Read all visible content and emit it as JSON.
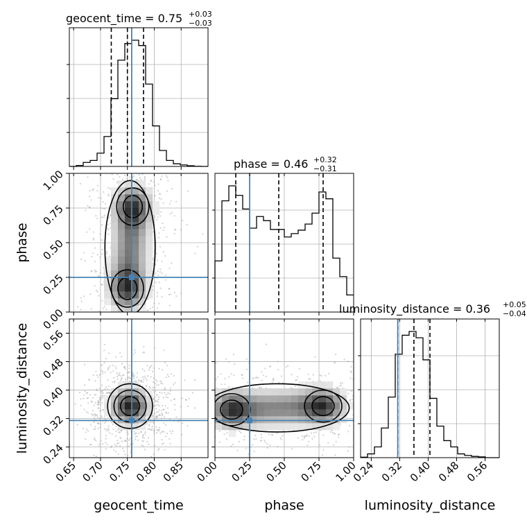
{
  "chart_data": {
    "type": "corner",
    "parameters": [
      "geocent_time",
      "phase",
      "luminosity_distance"
    ],
    "axis_labels": [
      "geocent_time",
      "phase",
      "luminosity_distance"
    ],
    "ranges": {
      "geocent_time": [
        0.642,
        0.9
      ],
      "phase": [
        0.0,
        1.0
      ],
      "luminosity_distance": [
        0.21,
        0.6
      ]
    },
    "ticks": {
      "geocent_time": [
        "0.65",
        "0.70",
        "0.75",
        "0.80",
        "0.85"
      ],
      "phase": [
        "0.00",
        "0.25",
        "0.50",
        "0.75",
        "1.00"
      ],
      "luminosity_distance": [
        "0.24",
        "0.32",
        "0.40",
        "0.48",
        "0.56"
      ]
    },
    "tick_values": {
      "geocent_time": [
        0.65,
        0.7,
        0.75,
        0.8,
        0.85
      ],
      "phase": [
        0.0,
        0.25,
        0.5,
        0.75,
        1.0
      ],
      "luminosity_distance": [
        0.24,
        0.32,
        0.4,
        0.48,
        0.56
      ]
    },
    "truths": {
      "geocent_time": 0.758,
      "phase": 0.25,
      "luminosity_distance": 0.3145
    },
    "titles": {
      "geocent_time": {
        "name": "geocent_time",
        "median": "0.75",
        "plus": "+0.03",
        "minus": "−0.03"
      },
      "phase": {
        "name": "phase",
        "median": "0.46",
        "plus": "+0.32",
        "minus": "−0.31"
      },
      "luminosity_distance": {
        "name": "luminosity_distance",
        "median": "0.36",
        "plus": "+0.05",
        "minus": "−0.04"
      }
    },
    "quantiles": {
      "geocent_time": [
        0.72,
        0.75,
        0.78
      ],
      "phase": [
        0.15,
        0.46,
        0.78
      ],
      "luminosity_distance": [
        0.315,
        0.36,
        0.405
      ]
    },
    "histograms": {
      "geocent_time": {
        "edges": [
          0.642,
          0.6549,
          0.6678,
          0.6807,
          0.6936,
          0.7065,
          0.7194,
          0.7323,
          0.7452,
          0.7581,
          0.771,
          0.7839,
          0.7968,
          0.8097,
          0.8226,
          0.8355,
          0.8484,
          0.8613,
          0.8742,
          0.8871,
          0.9
        ],
        "counts": [
          0.0,
          0.7,
          3.0,
          4.5,
          10.0,
          22.5,
          51.0,
          80.0,
          92.5,
          95.0,
          91.0,
          62.0,
          30.5,
          12.0,
          4.5,
          2.0,
          1.1,
          0.5,
          0.1,
          0.0
        ]
      },
      "phase": {
        "edges": [
          0.0,
          0.05,
          0.1,
          0.15,
          0.2,
          0.25,
          0.3,
          0.35,
          0.4,
          0.45,
          0.5,
          0.55,
          0.6,
          0.65,
          0.7,
          0.75,
          0.8,
          0.85,
          0.9,
          0.95,
          1.0
        ],
        "counts": [
          37.5,
          81.5,
          92.5,
          85.5,
          75.5,
          61.5,
          70.0,
          67.0,
          60.5,
          60.5,
          55.0,
          57.5,
          60.0,
          64.5,
          72.5,
          88.0,
          83.0,
          39.5,
          26.0,
          12.5
        ]
      },
      "luminosity_distance": {
        "edges": [
          0.21,
          0.2295,
          0.249,
          0.2685,
          0.288,
          0.3075,
          0.327,
          0.3465,
          0.366,
          0.3855,
          0.405,
          0.4245,
          0.444,
          0.4635,
          0.483,
          0.5025,
          0.522,
          0.5415,
          0.561,
          0.5805,
          0.6
        ],
        "counts": [
          0.4,
          3.0,
          8.5,
          23.5,
          48.0,
          82.0,
          97.0,
          100.0,
          95.0,
          77.5,
          47.0,
          25.0,
          13.5,
          8.5,
          3.0,
          1.8,
          1.0,
          0.6,
          0.0,
          0.0
        ]
      }
    },
    "density2d": [
      {
        "x": "geocent_time",
        "y": "phase",
        "modes": [
          [
            0.76,
            0.76
          ],
          [
            0.75,
            0.17
          ]
        ]
      },
      {
        "x": "geocent_time",
        "y": "luminosity_distance",
        "modes": [
          [
            0.755,
            0.355
          ]
        ]
      },
      {
        "x": "phase",
        "y": "luminosity_distance",
        "modes": [
          [
            0.12,
            0.345
          ],
          [
            0.78,
            0.355
          ]
        ]
      }
    ]
  }
}
